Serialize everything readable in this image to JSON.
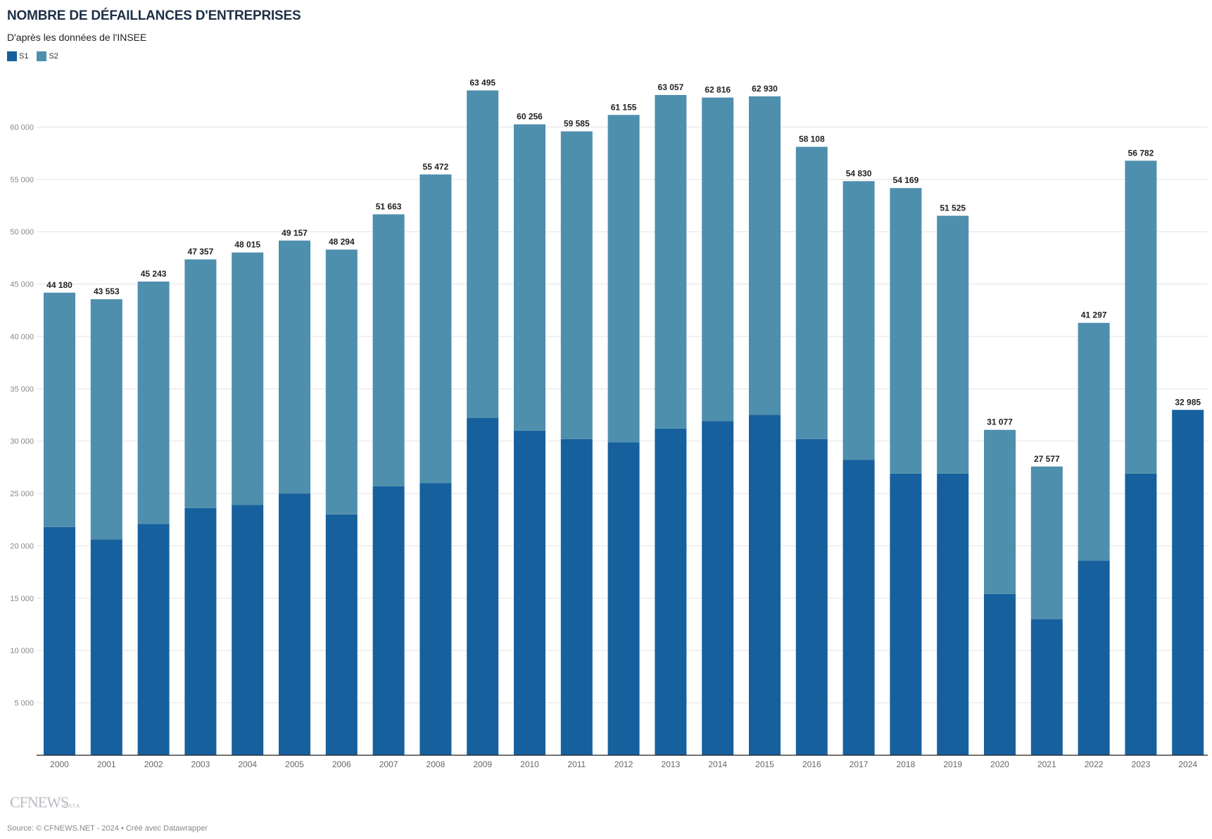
{
  "title": "NOMBRE DE DÉFAILLANCES D'ENTREPRISES",
  "subtitle": "D'après les données de l'INSEE",
  "footer": {
    "logo": "CFNEWS",
    "logo_sub": "DATA",
    "source": "Source: © CFNEWS.NET - 2024 • Créé avec Datawrapper"
  },
  "colors": {
    "s1": "#17609e",
    "s2": "#4e8fad",
    "grid": "#e3e3e3",
    "axis": "#222222",
    "tick": "#888888"
  },
  "chart_data": {
    "type": "bar",
    "stacked": true,
    "categories": [
      "2000",
      "2001",
      "2002",
      "2003",
      "2004",
      "2005",
      "2006",
      "2007",
      "2008",
      "2009",
      "2010",
      "2011",
      "2012",
      "2013",
      "2014",
      "2015",
      "2016",
      "2017",
      "2018",
      "2019",
      "2020",
      "2021",
      "2022",
      "2023",
      "2024"
    ],
    "series": [
      {
        "name": "S1",
        "values": [
          21800,
          20600,
          22100,
          23600,
          23900,
          25000,
          23000,
          25700,
          26000,
          32200,
          31000,
          30200,
          29900,
          31200,
          31900,
          32500,
          30200,
          28200,
          26900,
          26900,
          15400,
          13000,
          18600,
          26900,
          32985
        ]
      },
      {
        "name": "S2",
        "values": [
          22380,
          22953,
          23143,
          23757,
          24115,
          24157,
          25294,
          25963,
          29472,
          31295,
          29256,
          29385,
          31255,
          31857,
          30916,
          30430,
          27908,
          26630,
          27269,
          24625,
          15677,
          14577,
          22697,
          29882,
          0
        ]
      }
    ],
    "totals": [
      "44 180",
      "43 553",
      "45 243",
      "47 357",
      "48 015",
      "49 157",
      "48 294",
      "51 663",
      "55 472",
      "63 495",
      "60 256",
      "59 585",
      "61 155",
      "63 057",
      "62 816",
      "62 930",
      "58 108",
      "54 830",
      "54 169",
      "51 525",
      "31 077",
      "27 577",
      "41 297",
      "56 782",
      "32 985"
    ],
    "total_values": [
      44180,
      43553,
      45243,
      47357,
      48015,
      49157,
      48294,
      51663,
      55472,
      63495,
      60256,
      59585,
      61155,
      63057,
      62816,
      62930,
      58108,
      54830,
      54169,
      51525,
      31077,
      27577,
      41297,
      56782,
      32985
    ],
    "y_ticks": [
      5000,
      10000,
      15000,
      20000,
      25000,
      30000,
      35000,
      40000,
      45000,
      50000,
      55000,
      60000
    ],
    "y_tick_labels": [
      "5 000",
      "10 000",
      "15 000",
      "20 000",
      "25 000",
      "30 000",
      "35 000",
      "40 000",
      "45 000",
      "50 000",
      "55 000",
      "60 000"
    ],
    "ylim": [
      0,
      65000
    ],
    "grid": true,
    "legend_placement": "top-left"
  }
}
